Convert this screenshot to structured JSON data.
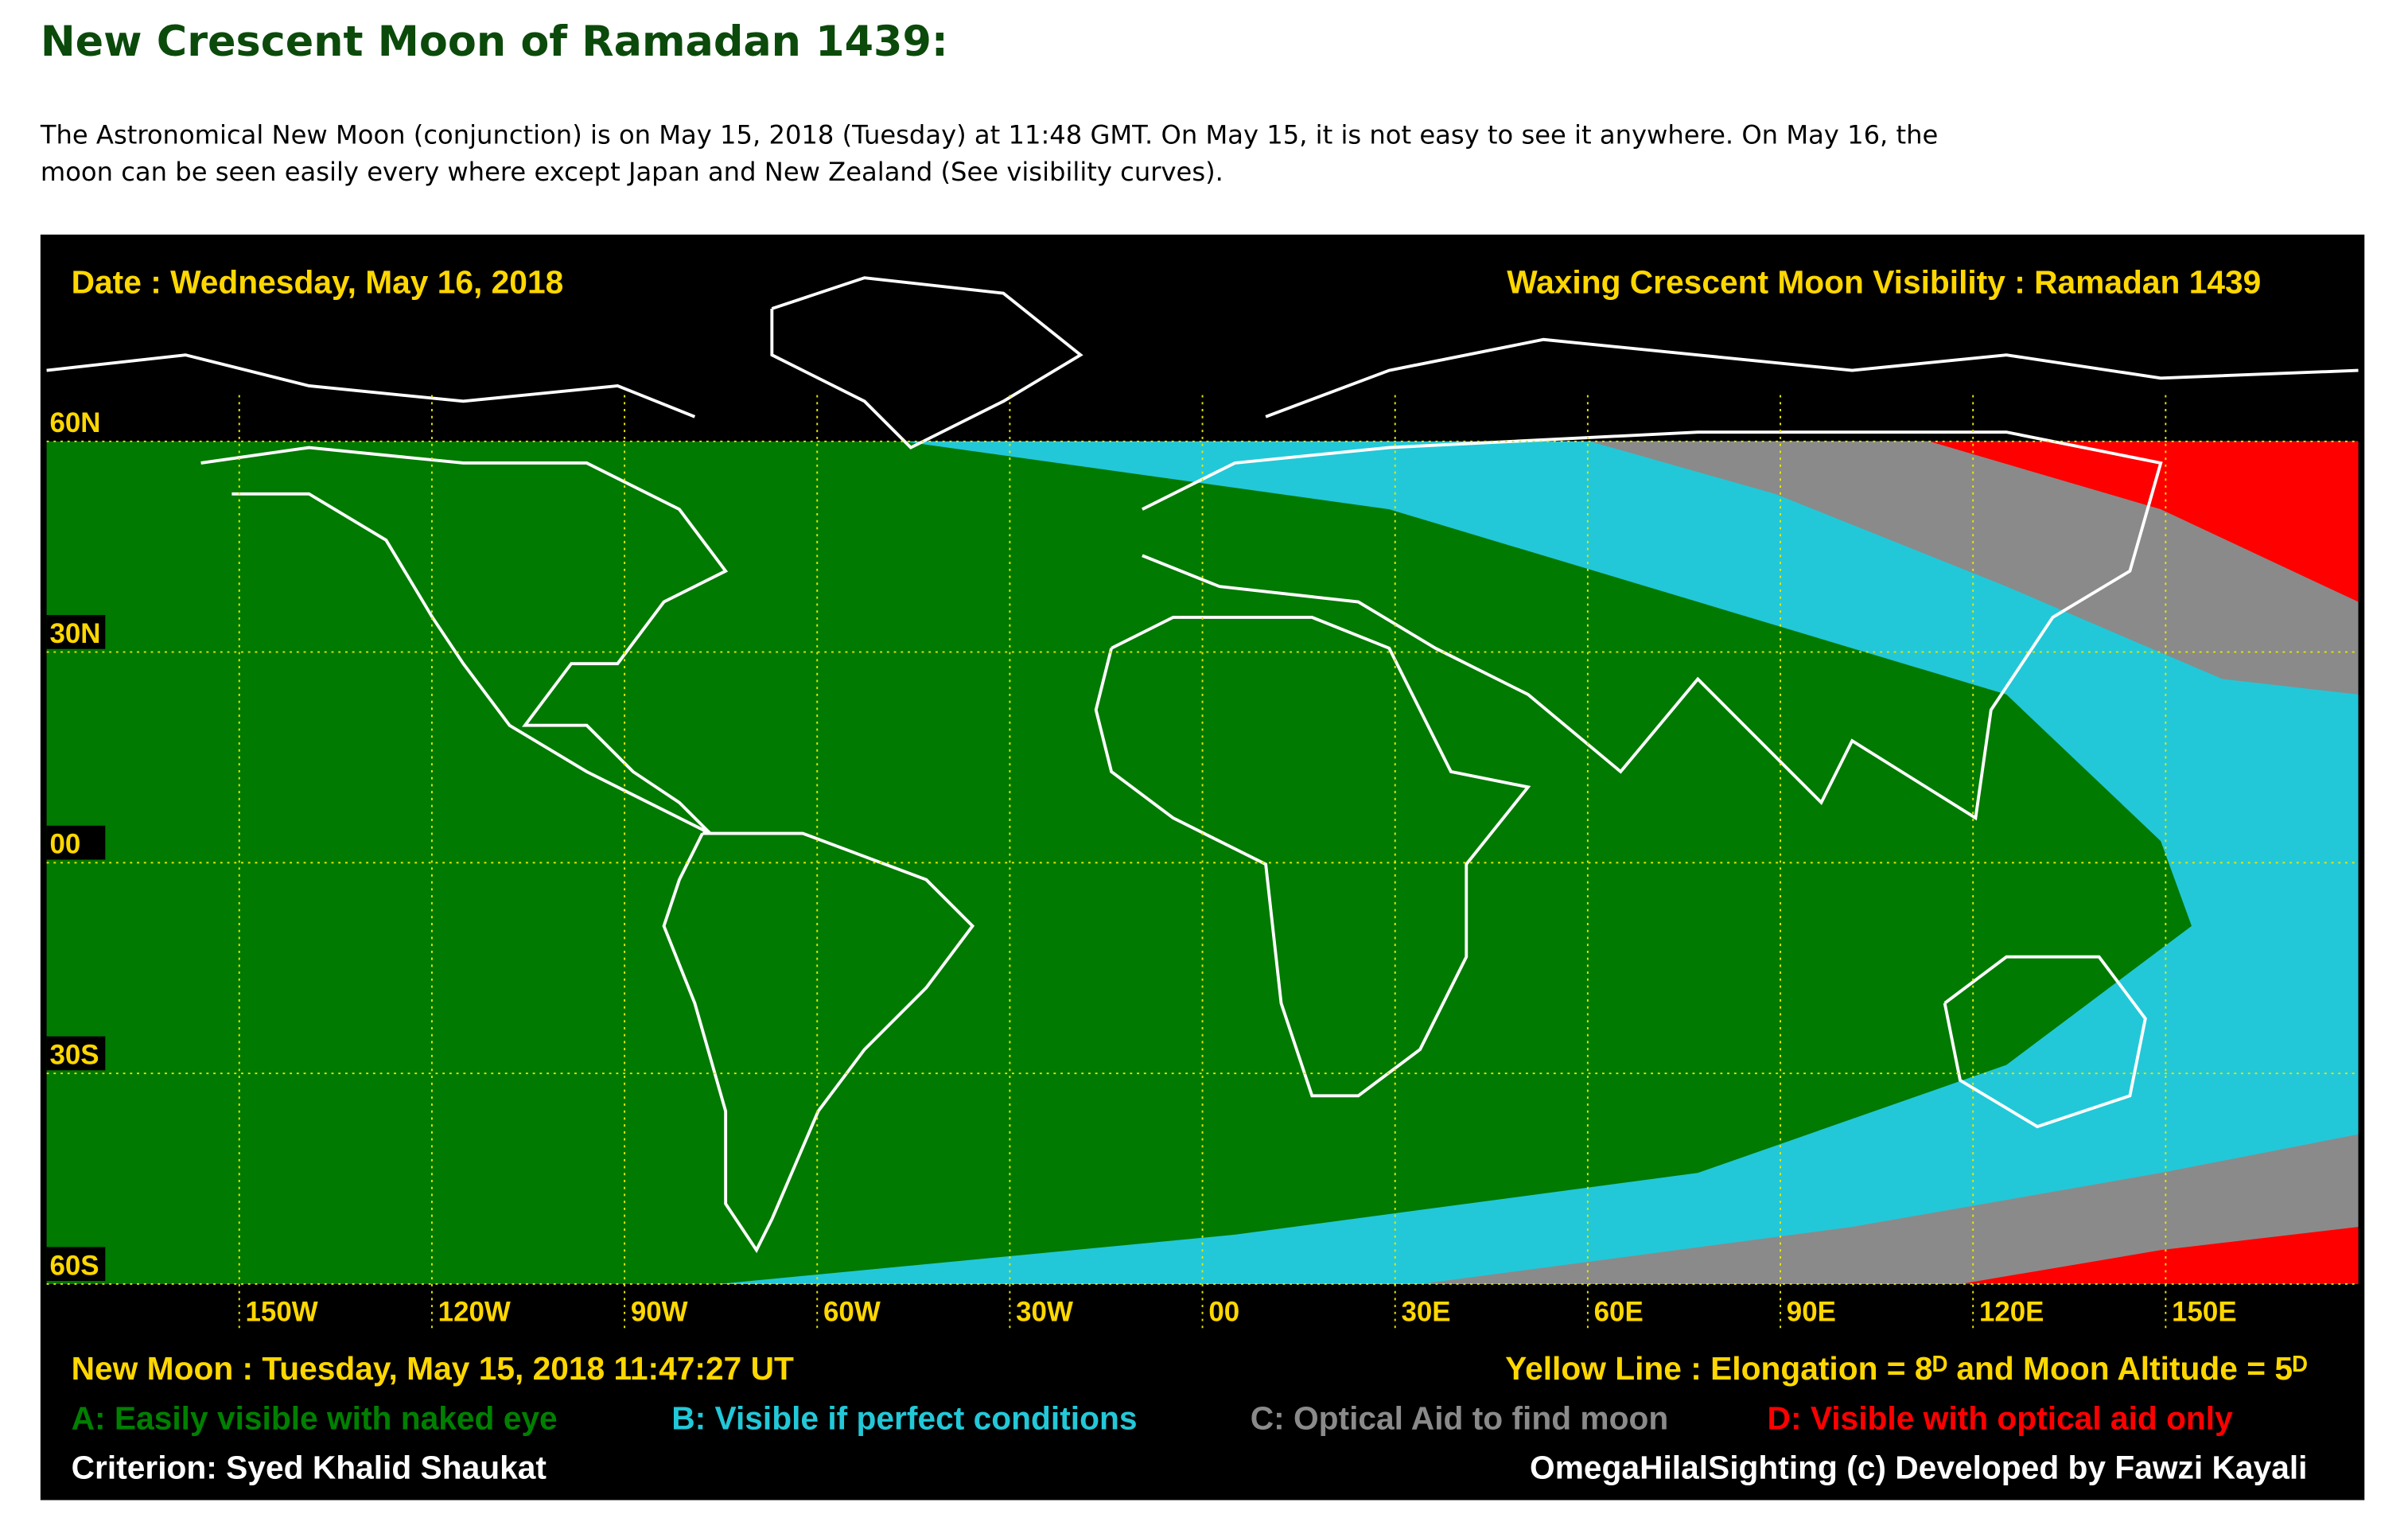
{
  "header": {
    "title": "New Crescent Moon of Ramadan 1439:",
    "paragraph": [
      "The Astronomical New Moon (conjunction) is on May 15, 2018 (Tuesday) at 11:48 GMT. On May 15, it is not easy to see it anywhere. On May 16, the",
      "moon can be seen easily every where except Japan and New Zealand (See visibility curves)."
    ]
  },
  "map": {
    "date": "Date : Wednesday, May 16, 2018",
    "map_title": "Waxing Crescent Moon Visibility : Ramadan 1439",
    "lat_labels": [
      "60N",
      "30N",
      "00",
      "30S",
      "60S"
    ],
    "lon_labels": [
      "150W",
      "120W",
      "90W",
      "60W",
      "30W",
      "00",
      "30E",
      "60E",
      "90E",
      "120E",
      "150E"
    ],
    "new_moon": "New Moon : Tuesday, May 15, 2018  11:47:27  UT",
    "yellow_line": "Yellow Line : Elongation = 8ᴰ and Moon Altitude = 5ᴰ",
    "legend": [
      {
        "text": "A: Easily visible with naked eye",
        "color": "#008000"
      },
      {
        "text": "B: Visible if perfect conditions",
        "color": "#22c8d8"
      },
      {
        "text": "C: Optical Aid to find moon",
        "color": "#8a8a8a"
      },
      {
        "text": "D: Visible with optical aid only",
        "color": "#ff0000"
      }
    ],
    "criterion": "Criterion: Syed Khalid Shaukat",
    "credit": "OmegaHilalSighting  (c)  Developed by Fawzi Kayali"
  }
}
